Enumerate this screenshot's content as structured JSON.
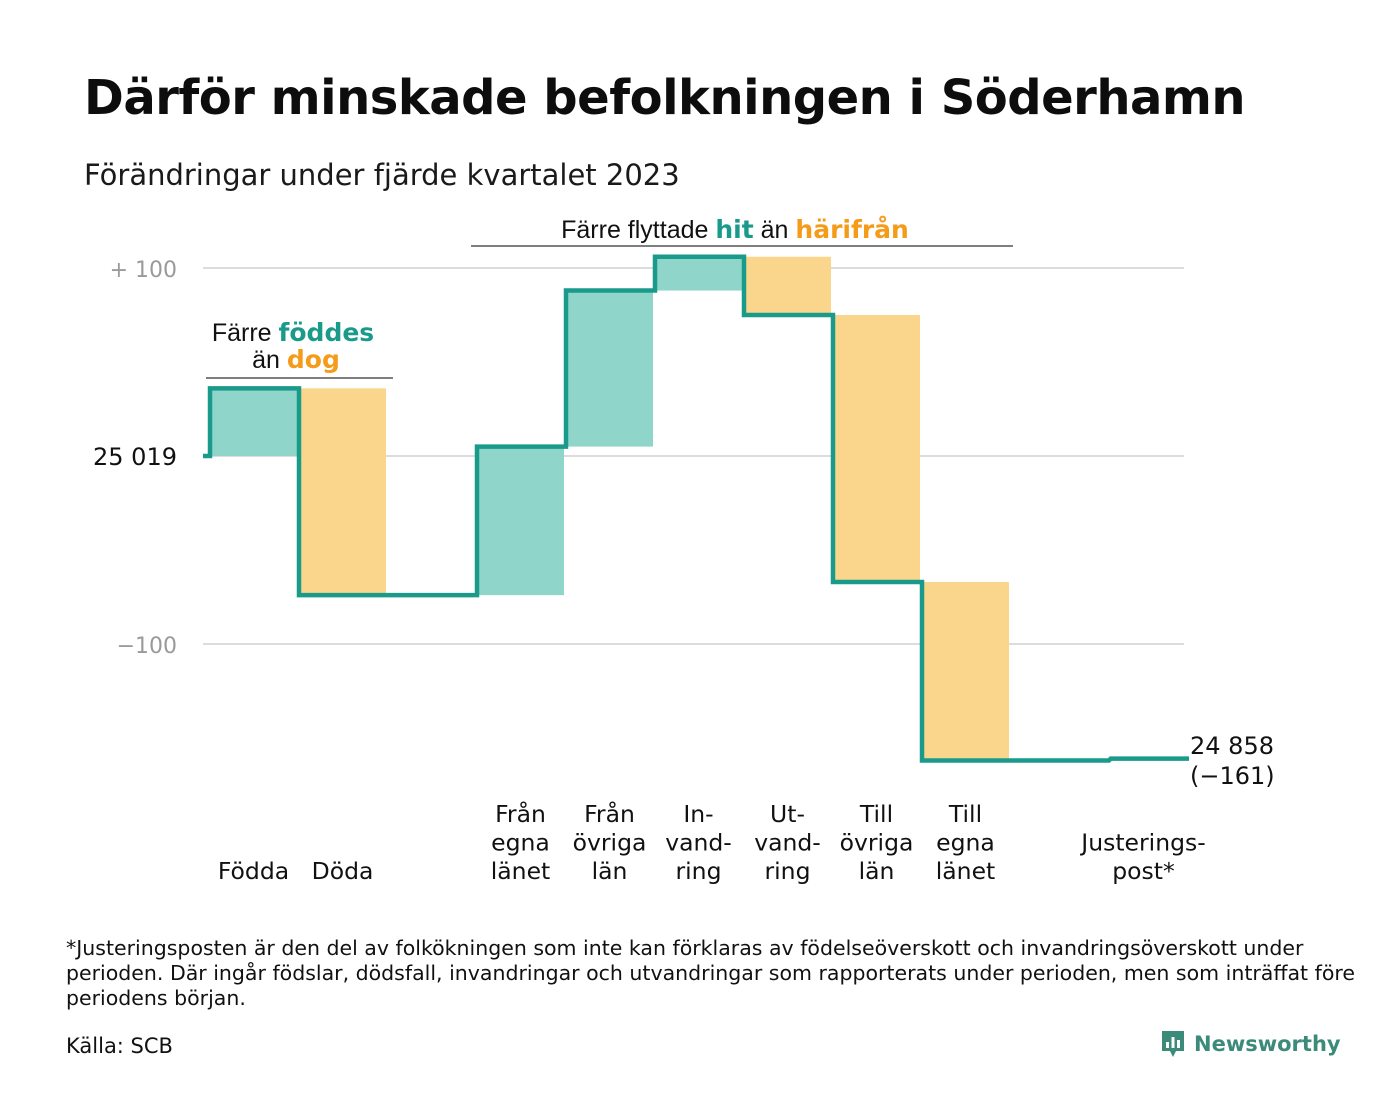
{
  "title": "Därför minskade befolkningen i Söderhamn",
  "subtitle": "Förändringar under fjärde kvartalet 2023",
  "annotations": {
    "born_group": {
      "line1_prefix": "Färre",
      "line1_highlight": "föddes",
      "line2_prefix": "än",
      "line2_highlight": "dog"
    },
    "move_group": {
      "prefix": "Färre flyttade",
      "highlight1": "hit",
      "middle": "än",
      "highlight2": "härifrån"
    }
  },
  "y_axis": {
    "labels": [
      "+ 100",
      "25 019",
      "−100"
    ]
  },
  "end_label": {
    "line1": "24 858",
    "line2": "(−161)"
  },
  "colors": {
    "increase": "#8fd5c9",
    "decrease": "#fad68d",
    "line": "#1a9a8b",
    "highlight_teal": "#1a9a8b",
    "highlight_orange": "#f59b1a",
    "grid": "#dcdcdc"
  },
  "chart_data": {
    "type": "waterfall",
    "start_value": 25019,
    "end_value": 24858,
    "net_change": -161,
    "ylim": [
      -180,
      110
    ],
    "y_ticks": [
      100,
      0,
      -100
    ],
    "categories": [
      "Födda",
      "Döda",
      "Från egna länet",
      "Från övriga län",
      "Invandring",
      "Utvandring",
      "Till övriga län",
      "Till egna länet",
      "Justeringspost*"
    ],
    "category_labels": [
      [
        "Födda"
      ],
      [
        "Döda"
      ],
      [
        "Från",
        "egna",
        "länet"
      ],
      [
        "Från",
        "övriga",
        "län"
      ],
      [
        "In-",
        "vand-",
        "ring"
      ],
      [
        "Ut-",
        "vand-",
        "ring"
      ],
      [
        "Till",
        "övriga",
        "län"
      ],
      [
        "Till",
        "egna",
        "länet"
      ],
      [
        "Justerings-",
        "post*"
      ]
    ],
    "category_slots": [
      0,
      1,
      3,
      4,
      5,
      6,
      7,
      8,
      10
    ],
    "changes": [
      36,
      -110,
      79,
      83,
      18,
      -31,
      -142,
      -95,
      1
    ],
    "series_types": [
      "increase",
      "decrease",
      "increase",
      "increase",
      "increase",
      "decrease",
      "decrease",
      "decrease",
      "increase"
    ]
  },
  "footnote": "*Justeringsposten är den del av folkökningen som inte kan förklaras av födelseöverskott och invandringsöverskott under perioden. Där ingår födslar, dödsfall, invandringar och utvandringar som rapporterats under perioden, men som inträffat före periodens början.",
  "source": "Källa: SCB",
  "brand": {
    "name": "Newsworthy",
    "icon": "newsworthy-logo-icon"
  }
}
